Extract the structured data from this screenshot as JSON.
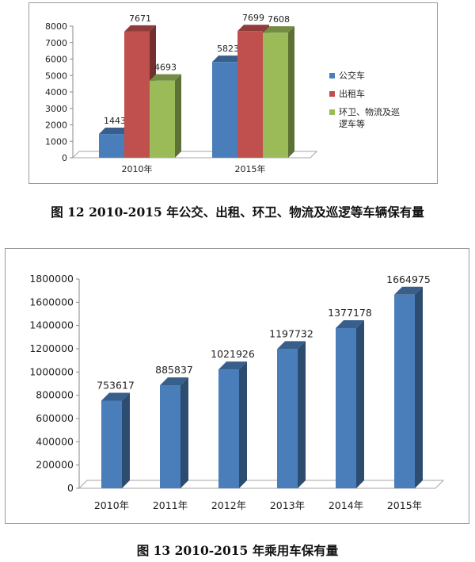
{
  "chart_data": [
    {
      "type": "bar",
      "title": "",
      "caption": "图 12  2010-2015 年公交、出租、环卫、物流及巡逻等车辆保有量",
      "categories": [
        "2010年",
        "2015年"
      ],
      "series": [
        {
          "name": "公交车",
          "values": [
            1443,
            5823
          ],
          "color": "#4a7ebb"
        },
        {
          "name": "出租车",
          "values": [
            7671,
            7699
          ],
          "color": "#c0504d"
        },
        {
          "name": "环卫、物流及巡逻车等",
          "values": [
            4693,
            7608
          ],
          "color": "#9bbb59"
        }
      ],
      "legend_lines": [
        [
          "公交车"
        ],
        [
          "出租车"
        ],
        [
          "环卫、物流及巡",
          "逻车等"
        ]
      ],
      "yticks": [
        "0",
        "1000",
        "2000",
        "3000",
        "4000",
        "5000",
        "6000",
        "7000",
        "8000"
      ],
      "ylim": [
        0,
        8000
      ],
      "grid": false,
      "legend": "right",
      "style": "3d-column"
    },
    {
      "type": "bar",
      "title": "",
      "caption": "图 13   2010-2015 年乘用车保有量",
      "categories": [
        "2010年",
        "2011年",
        "2012年",
        "2013年",
        "2014年",
        "2015年"
      ],
      "series": [
        {
          "values": [
            753617,
            885837,
            1021926,
            1197732,
            1377178,
            1664975
          ],
          "color": "#4a7ebb"
        }
      ],
      "yticks": [
        "0",
        "200000",
        "400000",
        "600000",
        "800000",
        "1000000",
        "1200000",
        "1400000",
        "1600000",
        "1800000"
      ],
      "ylim": [
        0,
        1800000
      ],
      "grid": false,
      "legend": "none",
      "style": "3d-column"
    }
  ]
}
